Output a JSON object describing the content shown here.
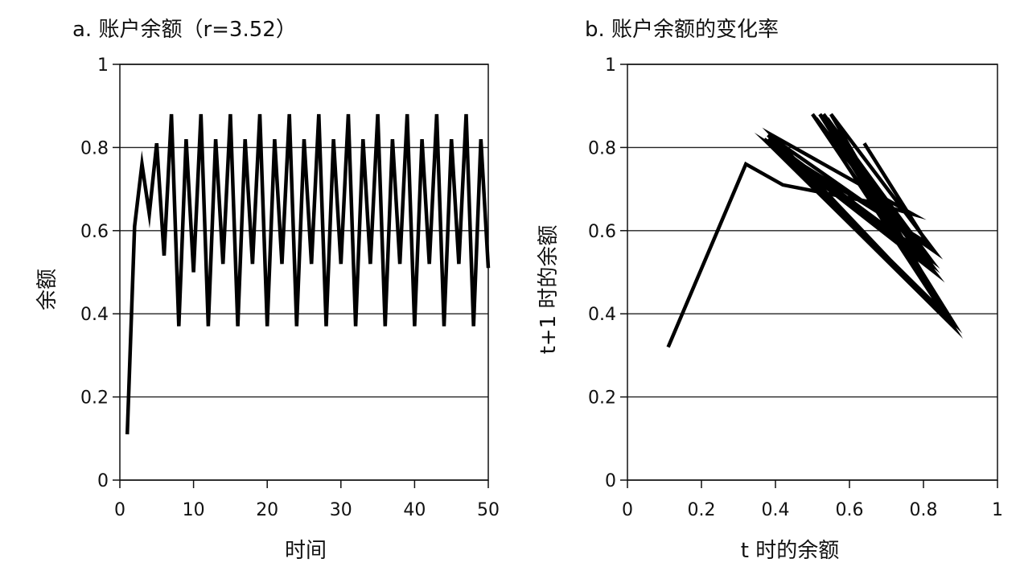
{
  "chart_data": [
    {
      "type": "line",
      "title": "a. 账户余额（r=3.52）",
      "xlabel": "时间",
      "ylabel": "余额",
      "xlim": [
        0,
        50
      ],
      "ylim": [
        0,
        1
      ],
      "xticks": [
        0,
        10,
        20,
        30,
        40,
        50
      ],
      "yticks": [
        0,
        0.2,
        0.4,
        0.6,
        0.8,
        1
      ],
      "xtick_labels": [
        "0",
        "10",
        "20",
        "30",
        "40",
        "50"
      ],
      "ytick_labels": [
        "0",
        "0.2",
        "0.4",
        "0.6",
        "0.8",
        "1"
      ],
      "grid": "horizontal",
      "series": [
        {
          "x": [
            1,
            2,
            3,
            4,
            5,
            6,
            7,
            8,
            9,
            10,
            11,
            12,
            13,
            14,
            15,
            16,
            17,
            18,
            19,
            20,
            21,
            22,
            23,
            24,
            25,
            26,
            27,
            28,
            29,
            30,
            31,
            32,
            33,
            34,
            35,
            36,
            37,
            38,
            39,
            40,
            41,
            42,
            43,
            44,
            45,
            46,
            47,
            48,
            49,
            50
          ],
          "y": [
            0.11,
            0.61,
            0.76,
            0.64,
            0.81,
            0.54,
            0.88,
            0.37,
            0.82,
            0.5,
            0.88,
            0.37,
            0.82,
            0.52,
            0.88,
            0.37,
            0.82,
            0.52,
            0.88,
            0.37,
            0.82,
            0.52,
            0.88,
            0.37,
            0.82,
            0.52,
            0.88,
            0.37,
            0.82,
            0.52,
            0.88,
            0.37,
            0.82,
            0.52,
            0.88,
            0.37,
            0.82,
            0.52,
            0.88,
            0.37,
            0.82,
            0.52,
            0.88,
            0.37,
            0.82,
            0.52,
            0.88,
            0.37,
            0.82,
            0.51
          ]
        }
      ]
    },
    {
      "type": "line",
      "title": "b. 账户余额的变化率",
      "xlabel": "t 时的余额",
      "ylabel": "t+1 时的余额",
      "xlim": [
        0,
        1
      ],
      "ylim": [
        0,
        1
      ],
      "xticks": [
        0,
        0.2,
        0.4,
        0.6,
        0.8,
        1
      ],
      "yticks": [
        0,
        0.2,
        0.4,
        0.6,
        0.8,
        1
      ],
      "xtick_labels": [
        "0",
        "0.2",
        "0.4",
        "0.6",
        "0.8",
        "1"
      ],
      "ytick_labels": [
        "0",
        "0.2",
        "0.4",
        "0.6",
        "0.8",
        "1"
      ],
      "grid": "horizontal",
      "series": [
        {
          "x": [
            0.11,
            0.32,
            0.42,
            0.65,
            0.77,
            0.39,
            0.88,
            0.37,
            0.83,
            0.5,
            0.88,
            0.38,
            0.82,
            0.53,
            0.87,
            0.38,
            0.81,
            0.54,
            0.87,
            0.38,
            0.82,
            0.52,
            0.88,
            0.37,
            0.82,
            0.51,
            0.87,
            0.38,
            0.83,
            0.55,
            0.88,
            0.37,
            0.82,
            0.53,
            0.88,
            0.38,
            0.81,
            0.64,
            0.76
          ],
          "y": [
            0.32,
            0.76,
            0.71,
            0.67,
            0.64,
            0.83,
            0.37,
            0.82,
            0.5,
            0.88,
            0.38,
            0.82,
            0.53,
            0.87,
            0.38,
            0.81,
            0.54,
            0.87,
            0.38,
            0.82,
            0.52,
            0.88,
            0.37,
            0.82,
            0.51,
            0.87,
            0.38,
            0.83,
            0.55,
            0.88,
            0.37,
            0.82,
            0.53,
            0.88,
            0.38,
            0.81,
            0.57,
            0.81,
            0.64
          ]
        }
      ]
    }
  ]
}
